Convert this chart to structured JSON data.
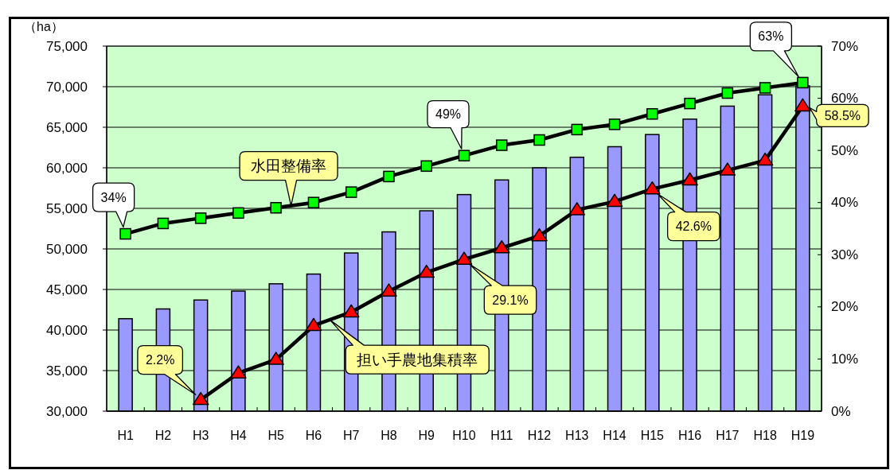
{
  "chart_data": {
    "type": "bar",
    "ylabel": "（ha）",
    "categories": [
      "H1",
      "H2",
      "H3",
      "H4",
      "H5",
      "H6",
      "H7",
      "H8",
      "H9",
      "H10",
      "H11",
      "H12",
      "H13",
      "H14",
      "H15",
      "H16",
      "H17",
      "H18",
      "H19"
    ],
    "series": [
      {
        "color": "#9999ff",
        "values": [
          41400,
          42600,
          43700,
          44800,
          45700,
          46900,
          49500,
          52100,
          54700,
          56700,
          58500,
          60000,
          61300,
          62600,
          64100,
          66000,
          67600,
          69000,
          70100
        ]
      },
      {
        "type": "line",
        "axis": "y2",
        "name": "水田整備率",
        "color": "#00ff00",
        "marker": "square",
        "values": [
          34,
          36,
          37,
          38,
          39,
          40,
          42,
          45,
          47,
          49,
          51,
          52,
          54,
          55,
          57,
          59,
          61,
          62,
          63
        ],
        "value_labels": [
          "34%",
          null,
          null,
          null,
          null,
          null,
          null,
          null,
          null,
          "49%",
          null,
          null,
          null,
          null,
          null,
          null,
          null,
          null,
          "63%"
        ]
      },
      {
        "type": "line",
        "axis": "y2",
        "name": "担い手農地集積率",
        "color": "#ff0000",
        "marker": "triangle",
        "values": [
          null,
          null,
          2.2,
          7.3,
          9.9,
          16.4,
          19.0,
          23.0,
          26.6,
          29.1,
          31.3,
          33.6,
          38.6,
          40.2,
          42.6,
          44.3,
          46.2,
          48.1,
          58.5
        ],
        "value_labels": [
          null,
          null,
          "2.2%",
          null,
          null,
          null,
          null,
          null,
          null,
          "29.1%",
          null,
          null,
          null,
          null,
          "42.6%",
          null,
          null,
          null,
          "58.5%"
        ]
      }
    ],
    "ylim": [
      30000,
      75000
    ],
    "yticks": [
      {
        "value": 30000,
        "label": "30,000"
      },
      {
        "value": 35000,
        "label": "35,000"
      },
      {
        "value": 40000,
        "label": "40,000"
      },
      {
        "value": 45000,
        "label": "45,000"
      },
      {
        "value": 50000,
        "label": "50,000"
      },
      {
        "value": 55000,
        "label": "55,000"
      },
      {
        "value": 60000,
        "label": "60,000"
      },
      {
        "value": 65000,
        "label": "65,000"
      },
      {
        "value": 70000,
        "label": "70,000"
      },
      {
        "value": 75000,
        "label": "75,000"
      }
    ],
    "y2lim": [
      0,
      70
    ],
    "y2ticks": [
      {
        "value": 0,
        "label": "0%"
      },
      {
        "value": 10,
        "label": "10%"
      },
      {
        "value": 20,
        "label": "20%"
      },
      {
        "value": 30,
        "label": "30%"
      },
      {
        "value": 40,
        "label": "40%"
      },
      {
        "value": 50,
        "label": "50%"
      },
      {
        "value": 60,
        "label": "60%"
      },
      {
        "value": 70,
        "label": "70%"
      }
    ],
    "grid": "y"
  }
}
